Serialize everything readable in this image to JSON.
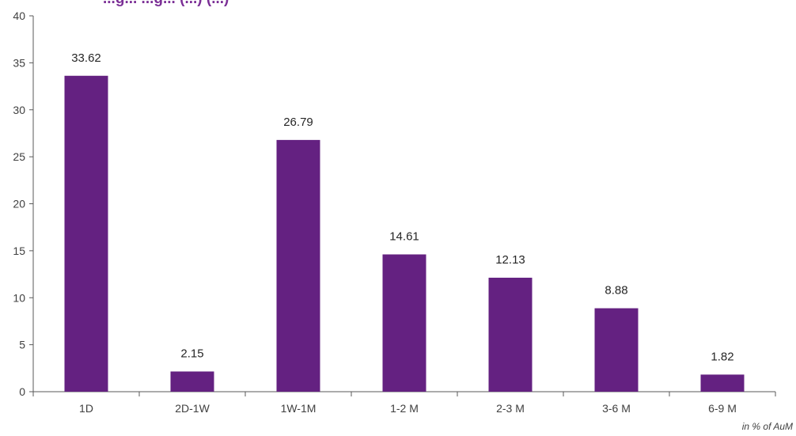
{
  "chart_data": {
    "type": "bar",
    "title": "...g... ...g... (...) (...)",
    "categories": [
      "1D",
      "2D-1W",
      "1W-1M",
      "1-2 M",
      "2-3 M",
      "3-6 M",
      "6-9 M"
    ],
    "values": [
      33.62,
      2.15,
      26.79,
      14.61,
      12.13,
      8.88,
      1.82
    ],
    "value_labels": [
      "33.62",
      "2.15",
      "26.79",
      "14.61",
      "12.13",
      "8.88",
      "1.82"
    ],
    "ylim": [
      0,
      40
    ],
    "yticks": [
      0,
      5,
      10,
      15,
      20,
      25,
      30,
      35,
      40
    ],
    "xlabel": "",
    "ylabel": "",
    "grid": false,
    "legend": "none",
    "unit_note": "in % of AuM",
    "bar_color": "#642181",
    "title_color": "#7b2f96",
    "axis_color": "#595959"
  }
}
